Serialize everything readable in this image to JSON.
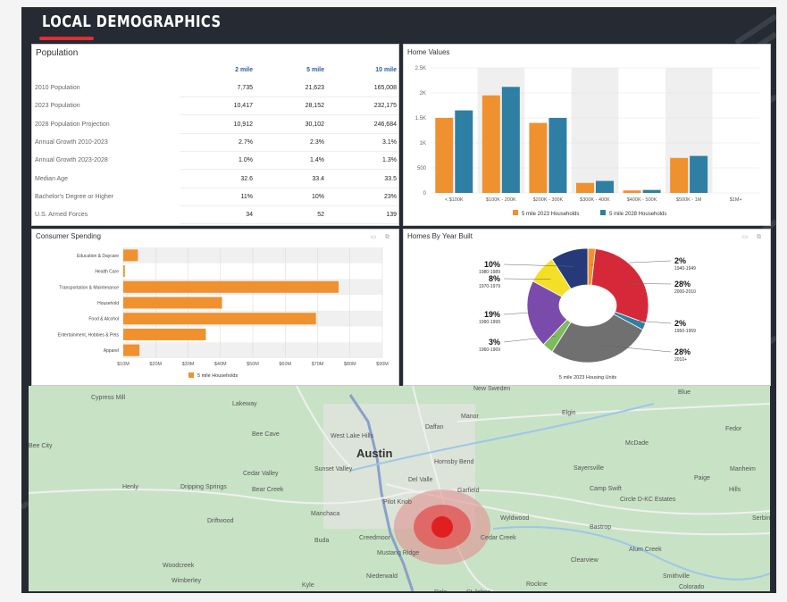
{
  "header": {
    "title": "LOCAL DEMOGRAPHICS"
  },
  "population": {
    "title": "Population",
    "columns": [
      "2 mile",
      "5 mile",
      "10 mile"
    ],
    "rows": [
      {
        "label": "2010 Population",
        "values": [
          "7,735",
          "21,623",
          "165,008"
        ]
      },
      {
        "label": "2023 Population",
        "values": [
          "10,417",
          "28,152",
          "232,175"
        ]
      },
      {
        "label": "2028 Population Projection",
        "values": [
          "10,912",
          "30,102",
          "246,684"
        ]
      },
      {
        "label": "Annual Growth 2010-2023",
        "values": [
          "2.7%",
          "2.3%",
          "3.1%"
        ]
      },
      {
        "label": "Annual Growth 2023-2028",
        "values": [
          "1.0%",
          "1.4%",
          "1.3%"
        ]
      },
      {
        "label": "Median Age",
        "values": [
          "32.6",
          "33.4",
          "33.5"
        ]
      },
      {
        "label": "Bachelor's Degree or Higher",
        "values": [
          "11%",
          "10%",
          "23%"
        ]
      },
      {
        "label": "U.S. Armed Forces",
        "values": [
          "34",
          "52",
          "139"
        ]
      }
    ]
  },
  "chart_data": [
    {
      "type": "bar",
      "title": "Home Values",
      "categories": [
        "< $100K",
        "$100K - 200K",
        "$200K - 300K",
        "$300K - 400K",
        "$400K - 500K",
        "$500K - 1M",
        "$1M+"
      ],
      "series": [
        {
          "name": "5 mile 2023 Households",
          "color": "#f0912f",
          "values": [
            1500,
            1950,
            1400,
            200,
            50,
            700,
            0
          ]
        },
        {
          "name": "5 mile 2028 Households",
          "color": "#2e7fa3",
          "values": [
            1650,
            2120,
            1500,
            240,
            60,
            740,
            0
          ]
        }
      ],
      "yticks": [
        "0",
        "500",
        "1K",
        "1.5K",
        "2K",
        "2.5K"
      ],
      "ylim": [
        0,
        2500
      ],
      "legend": "bottom"
    },
    {
      "type": "bar",
      "orientation": "horizontal",
      "title": "Consumer Spending",
      "categories": [
        "Education & Daycare",
        "Health Care",
        "Transportation & Maintenance",
        "Household",
        "Food & Alcohol",
        "Entertainment, Hobbies & Pets",
        "Apparel"
      ],
      "series": [
        {
          "name": "5 mile Households",
          "color": "#f0912f",
          "values": [
            14.5,
            10.5,
            76.5,
            40.5,
            69.5,
            35.5,
            15
          ]
        }
      ],
      "xticks": [
        "$10M",
        "$20M",
        "$30M",
        "$40M",
        "$50M",
        "$60M",
        "$70M",
        "$80M",
        "$90M"
      ],
      "xlim": [
        10,
        90
      ],
      "legend": "bottom"
    },
    {
      "type": "pie",
      "title": "Homes By Year Built",
      "series_name": "5 mile 2023 Housing Units",
      "slices": [
        {
          "label": "1940-1949",
          "pct_label": "2%",
          "value": 2,
          "color": "#f0912f"
        },
        {
          "label": "2000-2010",
          "pct_label": "28%",
          "value": 28,
          "color": "#d5293a"
        },
        {
          "label": "1950-1959",
          "pct_label": "2%",
          "value": 2,
          "color": "#2e7fa3"
        },
        {
          "label": "2010+",
          "pct_label": "28%",
          "value": 28,
          "color": "#707070"
        },
        {
          "label": "1960-1969",
          "pct_label": "3%",
          "value": 3,
          "color": "#7dbb5d"
        },
        {
          "label": "1990-1999",
          "pct_label": "19%",
          "value": 19,
          "color": "#7b4bab"
        },
        {
          "label": "1970-1979",
          "pct_label": "8%",
          "value": 8,
          "color": "#f5df26"
        },
        {
          "label": "1980-1989",
          "pct_label": "10%",
          "value": 10,
          "color": "#263a7a"
        }
      ]
    }
  ],
  "map": {
    "city": "Austin",
    "places": [
      "Cypress Mill",
      "Lakeway",
      "Bee Cave",
      "West Lake Hills",
      "Cedar Valley",
      "Sunset Valley",
      "Henly",
      "Dripping Springs",
      "Bear Creek",
      "Driftwood",
      "Manchaca",
      "Buda",
      "Creedmoor",
      "Mustang Ridge",
      "Woodcreek",
      "Wimberley",
      "Kyle",
      "Niederwald",
      "Pilot Knob",
      "Garfield",
      "Del Valle",
      "Hornsby Bend",
      "Daffan",
      "Manor",
      "Elgin",
      "New Sweden",
      "Blue",
      "Fedor",
      "McDade",
      "Sayersville",
      "Manheim",
      "Camp Swift",
      "Paige",
      "Circle D-KC Estates",
      "Hills",
      "Wyldwood",
      "Bastrop",
      "Cedar Creek",
      "Alum Creek",
      "Clearview",
      "Smithville",
      "Colorado",
      "Serbin",
      "Rockne",
      "St Johns",
      "Dale",
      "Bee City"
    ]
  }
}
